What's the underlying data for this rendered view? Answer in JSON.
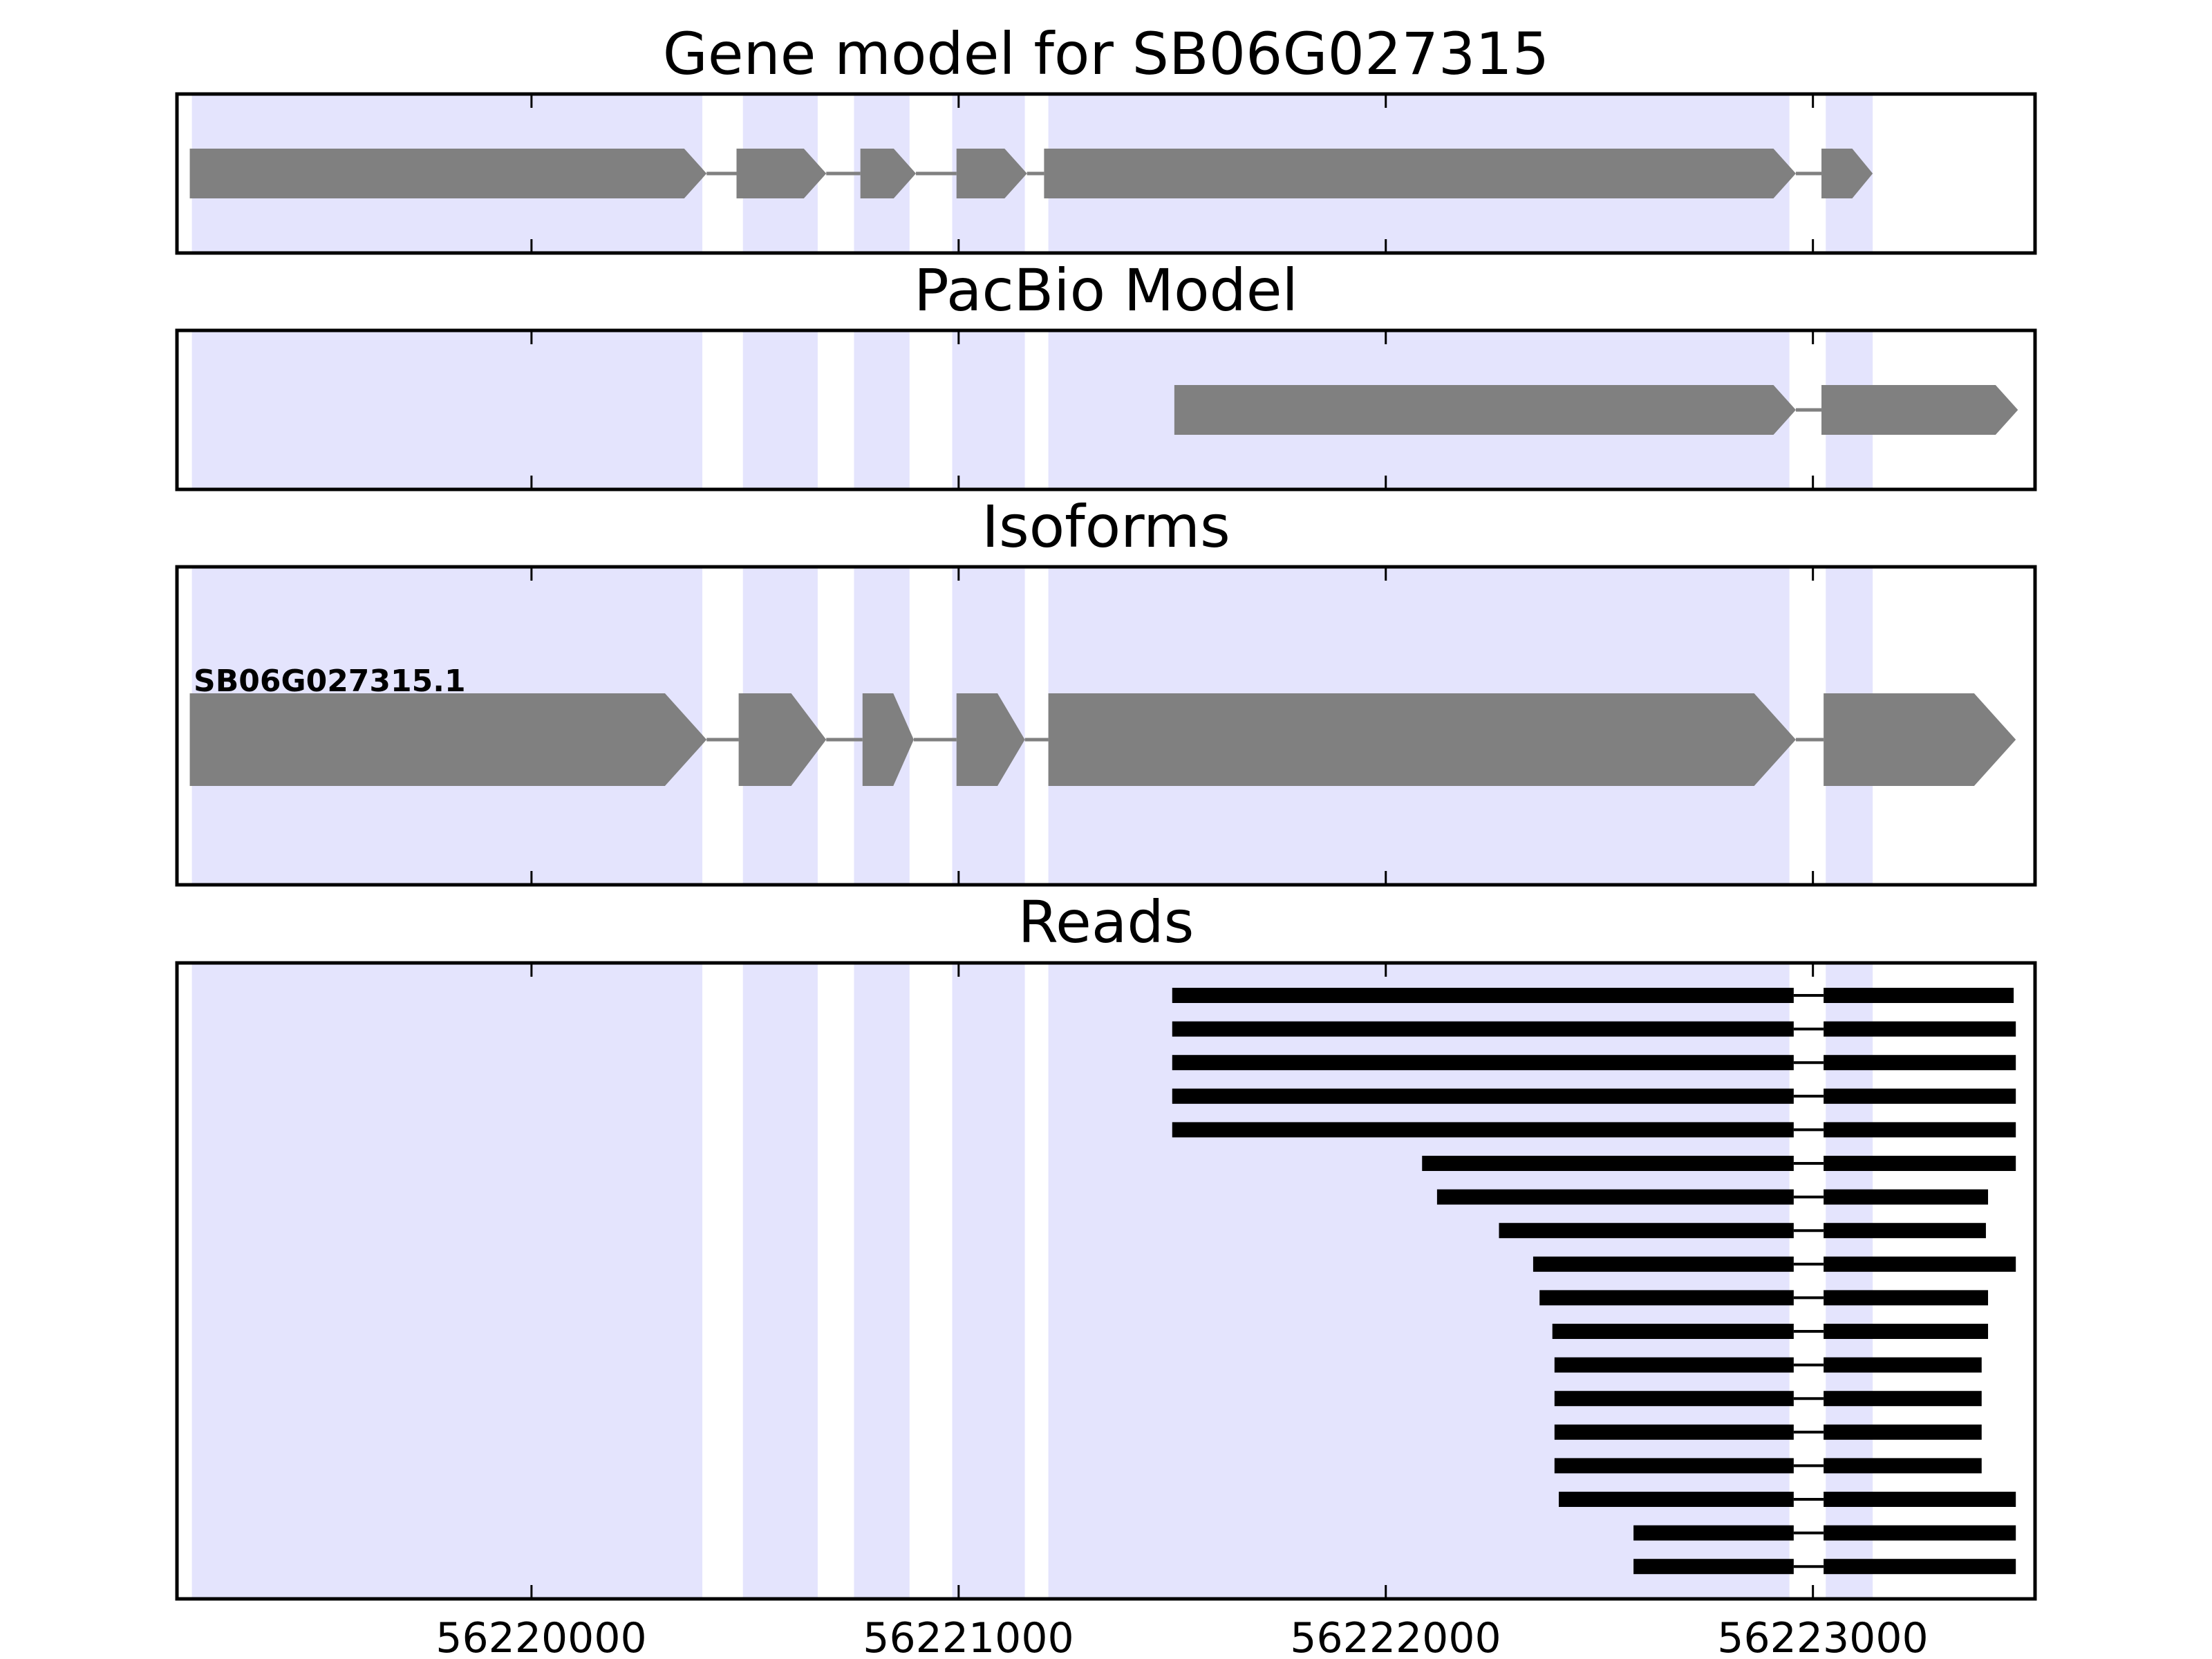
{
  "chart_data": {
    "type": "gene-track",
    "x_axis": {
      "xlim": [
        56219170,
        56223520
      ],
      "ticks": [
        56220000,
        56221000,
        56222000,
        56223000
      ],
      "tick_labels": [
        "56220000",
        "56221000",
        "56222000",
        "56223000"
      ]
    },
    "colors": {
      "exon_band": "#e4e4fd",
      "feature": "#808080",
      "read": "#000000",
      "frame": "#000000"
    },
    "exon_bands": [
      [
        56219205,
        56220400
      ],
      [
        56220495,
        56220670
      ],
      [
        56220755,
        56220885
      ],
      [
        56220985,
        56221155
      ],
      [
        56221210,
        56222945
      ],
      [
        56223030,
        56223140
      ]
    ],
    "panels": [
      {
        "title": "Gene model for SB06G027315",
        "features": [
          [
            56219200,
            56220410
          ],
          [
            56220480,
            56220690
          ],
          [
            56220770,
            56220900
          ],
          [
            56220995,
            56221160
          ],
          [
            56221200,
            56222960
          ],
          [
            56223020,
            56223140
          ]
        ]
      },
      {
        "title": "PacBio Model",
        "features": [
          [
            56221505,
            56222960
          ],
          [
            56223020,
            56223480
          ]
        ]
      },
      {
        "title": "Isoforms",
        "isoform_label": "SB06G027315.1",
        "features": [
          [
            56219200,
            56220410
          ],
          [
            56220485,
            56220690
          ],
          [
            56220775,
            56220895
          ],
          [
            56220995,
            56221155
          ],
          [
            56221210,
            56222960
          ],
          [
            56223025,
            56223475
          ]
        ]
      },
      {
        "title": "Reads",
        "reads": [
          [
            [
              56221500,
              56222955
            ],
            [
              56223025,
              56223470
            ]
          ],
          [
            [
              56221500,
              56222955
            ],
            [
              56223025,
              56223475
            ]
          ],
          [
            [
              56221500,
              56222955
            ],
            [
              56223025,
              56223475
            ]
          ],
          [
            [
              56221500,
              56222955
            ],
            [
              56223025,
              56223475
            ]
          ],
          [
            [
              56221500,
              56222955
            ],
            [
              56223025,
              56223475
            ]
          ],
          [
            [
              56222085,
              56222955
            ],
            [
              56223025,
              56223475
            ]
          ],
          [
            [
              56222120,
              56222955
            ],
            [
              56223025,
              56223410
            ]
          ],
          [
            [
              56222265,
              56222955
            ],
            [
              56223025,
              56223405
            ]
          ],
          [
            [
              56222345,
              56222955
            ],
            [
              56223025,
              56223475
            ]
          ],
          [
            [
              56222360,
              56222955
            ],
            [
              56223025,
              56223410
            ]
          ],
          [
            [
              56222390,
              56222955
            ],
            [
              56223025,
              56223410
            ]
          ],
          [
            [
              56222395,
              56222955
            ],
            [
              56223025,
              56223395
            ]
          ],
          [
            [
              56222395,
              56222955
            ],
            [
              56223025,
              56223395
            ]
          ],
          [
            [
              56222395,
              56222955
            ],
            [
              56223025,
              56223395
            ]
          ],
          [
            [
              56222395,
              56222955
            ],
            [
              56223025,
              56223395
            ]
          ],
          [
            [
              56222405,
              56222955
            ],
            [
              56223025,
              56223475
            ]
          ],
          [
            [
              56222580,
              56222955
            ],
            [
              56223025,
              56223475
            ]
          ],
          [
            [
              56222580,
              56222955
            ],
            [
              56223025,
              56223475
            ]
          ]
        ]
      }
    ]
  }
}
